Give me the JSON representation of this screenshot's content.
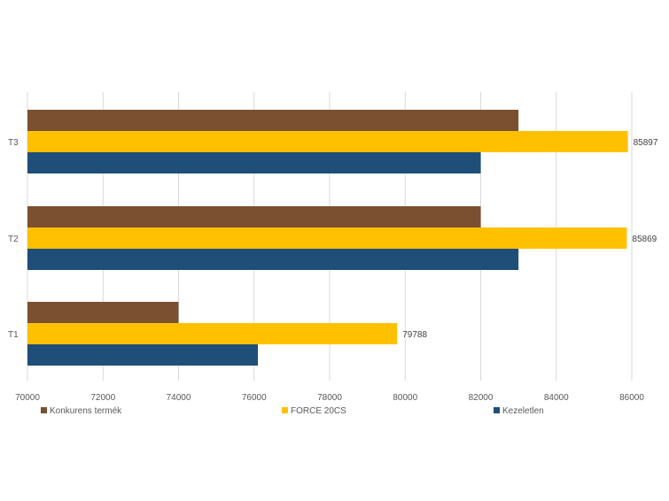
{
  "chart_data": {
    "type": "bar",
    "orientation": "horizontal",
    "categories": [
      "T1",
      "T2",
      "T3"
    ],
    "series": [
      {
        "name": "Kezeletlen",
        "color": "#1F4E79",
        "values": [
          76100,
          83000,
          82000
        ]
      },
      {
        "name": "FORCE 20CS",
        "color": "#FFC000",
        "values": [
          79788,
          85869,
          85897
        ]
      },
      {
        "name": "Konkurens termék",
        "color": "#7B5030",
        "values": [
          74000,
          82000,
          83000
        ]
      }
    ],
    "data_labels": {
      "FORCE 20CS": [
        "79788",
        "85869",
        "85897"
      ]
    },
    "x_ticks": [
      "70000",
      "72000",
      "74000",
      "76000",
      "78000",
      "80000",
      "82000",
      "84000",
      "86000"
    ],
    "xlim": [
      70000,
      86000
    ],
    "grid": true,
    "legend": {
      "position": "bottom",
      "order": [
        "Konkurens termék",
        "FORCE 20CS",
        "Kezeletlen"
      ]
    },
    "title": "",
    "xlabel": "",
    "ylabel": ""
  }
}
